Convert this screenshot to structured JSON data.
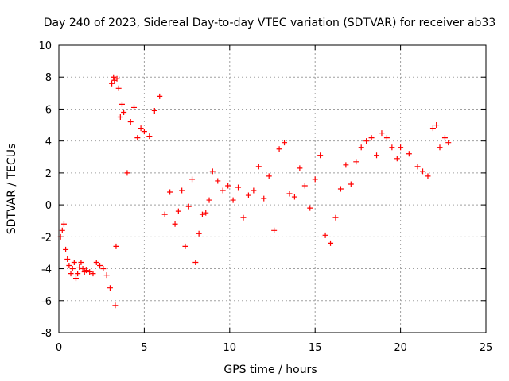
{
  "chart_data": {
    "type": "scatter",
    "title": "Day 240 of 2023, Sidereal Day-to-day VTEC variation (SDTVAR) for receiver ab33",
    "xlabel": "GPS time / hours",
    "ylabel": "SDTVAR / TECUs",
    "xlim": [
      0,
      25
    ],
    "ylim": [
      -8,
      10
    ],
    "xticks": [
      0,
      5,
      10,
      15,
      20,
      25
    ],
    "yticks": [
      -8,
      -6,
      -4,
      -2,
      0,
      2,
      4,
      6,
      8,
      10
    ],
    "grid": true,
    "marker": "+",
    "color": "#ff0000",
    "series": [
      {
        "name": "SDTVAR",
        "x": [
          0.1,
          0.2,
          0.3,
          0.4,
          0.5,
          0.6,
          0.7,
          0.8,
          0.9,
          1.0,
          1.1,
          1.2,
          1.3,
          1.4,
          1.5,
          1.6,
          1.8,
          2.0,
          2.2,
          2.4,
          2.6,
          2.8,
          3.0,
          3.1,
          3.2,
          3.25,
          3.3,
          3.35,
          3.4,
          3.5,
          3.6,
          3.7,
          3.8,
          4.0,
          4.2,
          4.4,
          4.6,
          4.8,
          5.0,
          5.3,
          5.6,
          5.9,
          6.2,
          6.5,
          6.8,
          7.0,
          7.2,
          7.4,
          7.6,
          7.8,
          8.0,
          8.2,
          8.4,
          8.6,
          8.8,
          9.0,
          9.3,
          9.6,
          9.9,
          10.2,
          10.5,
          10.8,
          11.1,
          11.4,
          11.7,
          12.0,
          12.3,
          12.6,
          12.9,
          13.2,
          13.5,
          13.8,
          14.1,
          14.4,
          14.7,
          15.0,
          15.3,
          15.6,
          15.9,
          16.2,
          16.5,
          16.8,
          17.1,
          17.4,
          17.7,
          18.0,
          18.3,
          18.6,
          18.9,
          19.2,
          19.5,
          19.8,
          20.0,
          20.5,
          21.0,
          21.3,
          21.6,
          21.9,
          22.1,
          22.3,
          22.6,
          22.8
        ],
        "y": [
          -2.0,
          -1.6,
          -1.2,
          -2.8,
          -3.4,
          -3.8,
          -4.3,
          -4.0,
          -3.6,
          -4.6,
          -4.3,
          -3.9,
          -3.6,
          -4.0,
          -4.2,
          -4.1,
          -4.2,
          -4.3,
          -3.6,
          -3.8,
          -4.0,
          -4.4,
          -5.2,
          7.6,
          8.0,
          7.8,
          -6.3,
          -2.6,
          7.9,
          7.3,
          5.5,
          6.3,
          5.8,
          2.0,
          5.2,
          6.1,
          4.2,
          4.8,
          4.6,
          4.3,
          5.9,
          6.8,
          -0.6,
          0.8,
          -1.2,
          -0.4,
          0.9,
          -2.6,
          -0.1,
          1.6,
          -3.6,
          -1.8,
          -0.6,
          -0.5,
          0.3,
          2.1,
          1.5,
          0.9,
          1.2,
          0.3,
          1.1,
          -0.8,
          0.6,
          0.9,
          2.4,
          0.4,
          1.8,
          -1.6,
          3.5,
          3.9,
          0.7,
          0.5,
          2.3,
          1.2,
          -0.2,
          1.6,
          3.1,
          -1.9,
          -2.4,
          -0.8,
          1.0,
          2.5,
          1.3,
          2.7,
          3.6,
          4.0,
          4.2,
          3.1,
          4.5,
          4.2,
          3.6,
          2.9,
          3.6,
          3.2,
          2.4,
          2.1,
          1.8,
          4.8,
          5.0,
          3.6,
          4.2,
          3.9
        ]
      }
    ]
  }
}
